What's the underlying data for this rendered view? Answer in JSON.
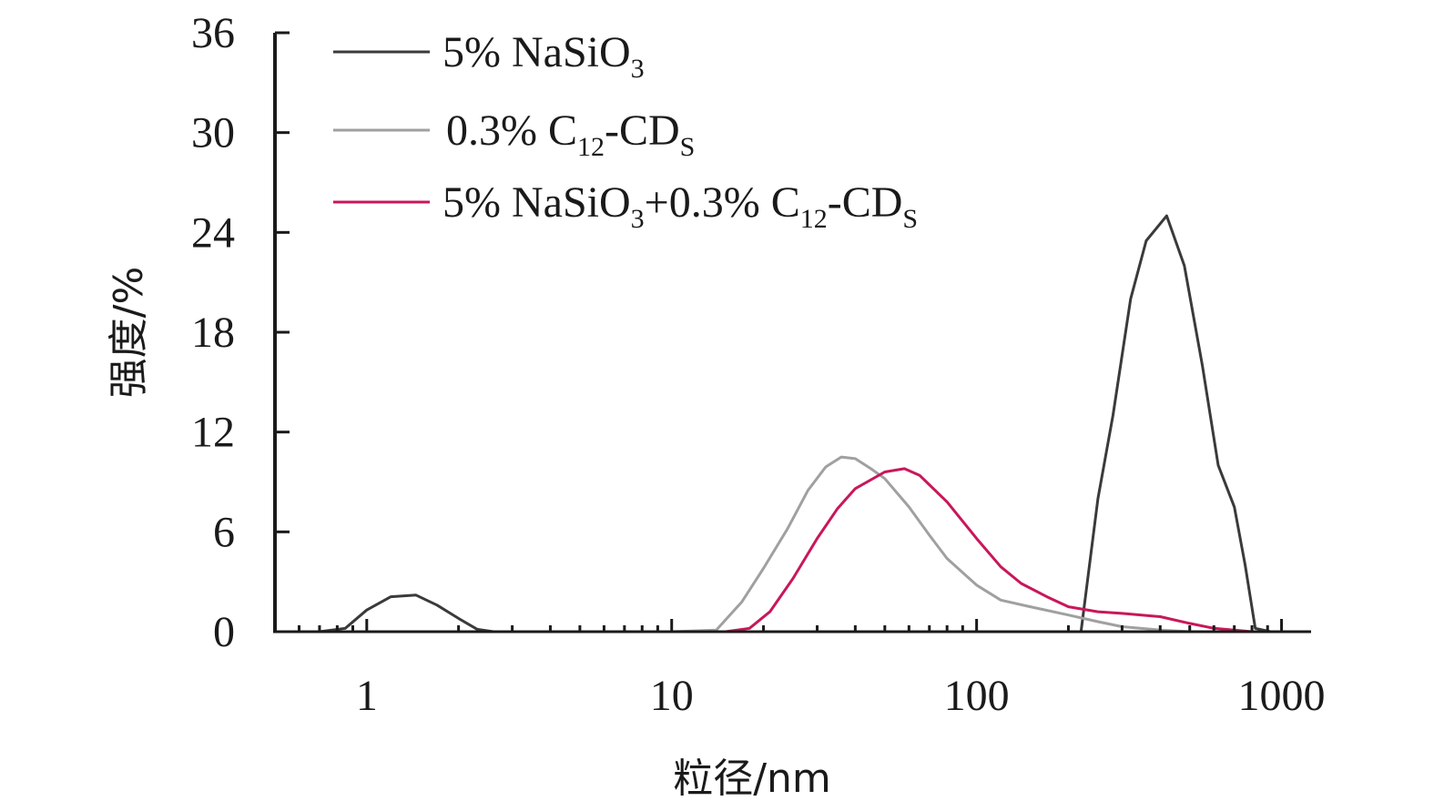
{
  "chart_data": {
    "type": "line",
    "title": "",
    "xlabel": "粒径/nm",
    "ylabel": "强度/%",
    "xscale": "log",
    "xlim": [
      0.5,
      1250
    ],
    "ylim": [
      0,
      36
    ],
    "xticks": [
      1,
      10,
      100,
      1000
    ],
    "xtick_labels": [
      "1",
      "10",
      "100",
      "1000"
    ],
    "yticks": [
      0,
      6,
      12,
      18,
      24,
      30,
      36
    ],
    "ytick_labels": [
      "0",
      "6",
      "12",
      "18",
      "24",
      "30",
      "36"
    ],
    "legend_position": "top-left",
    "series": [
      {
        "name": "5% NaSiO3",
        "legend": {
          "parts": [
            "5% NaSiO",
            "3",
            ""
          ]
        },
        "color": "#3a3a3a",
        "x": [
          0.5,
          0.7,
          0.85,
          1.0,
          1.2,
          1.45,
          1.7,
          2.0,
          2.3,
          2.6,
          5,
          10,
          50,
          100,
          200,
          220,
          250,
          280,
          320,
          360,
          420,
          480,
          550,
          620,
          700,
          760,
          820,
          920,
          1250
        ],
        "y": [
          0,
          0,
          0.2,
          1.3,
          2.1,
          2.2,
          1.6,
          0.8,
          0.15,
          0,
          0,
          0,
          0,
          0,
          0,
          0,
          8,
          13,
          20,
          23.5,
          25,
          22,
          16,
          10,
          7.5,
          4,
          0.2,
          0,
          0
        ]
      },
      {
        "name": "0.3% C12-CDs",
        "legend": {
          "parts": [
            "0.3% C",
            "12",
            "-CD",
            "S",
            ""
          ]
        },
        "color": "#a0a0a0",
        "x": [
          0.5,
          5,
          10,
          14,
          17,
          20,
          24,
          28,
          32,
          36,
          40,
          45,
          50,
          60,
          70,
          80,
          100,
          120,
          150,
          200,
          250,
          300,
          400,
          500,
          700,
          1250
        ],
        "y": [
          0,
          0,
          0,
          0.1,
          1.8,
          3.8,
          6.2,
          8.5,
          9.9,
          10.5,
          10.4,
          9.8,
          9.2,
          7.5,
          5.8,
          4.4,
          2.8,
          1.9,
          1.5,
          1.0,
          0.6,
          0.3,
          0.1,
          0,
          0,
          0
        ]
      },
      {
        "name": "5% NaSiO3+0.3% C12-CDs",
        "legend": {
          "parts": [
            "5% NaSiO",
            "3",
            "+0.3% C",
            "12",
            "-CD",
            "S",
            ""
          ]
        },
        "color": "#c8175a",
        "x": [
          0.5,
          5,
          10,
          15,
          18,
          21,
          25,
          30,
          35,
          40,
          50,
          58,
          65,
          80,
          100,
          120,
          140,
          170,
          200,
          250,
          300,
          400,
          500,
          600,
          800,
          1250
        ],
        "y": [
          0,
          0,
          0,
          0,
          0.2,
          1.2,
          3.2,
          5.6,
          7.4,
          8.6,
          9.6,
          9.8,
          9.4,
          7.8,
          5.6,
          3.9,
          2.9,
          2.1,
          1.5,
          1.2,
          1.1,
          0.9,
          0.5,
          0.2,
          0,
          0
        ]
      }
    ]
  }
}
